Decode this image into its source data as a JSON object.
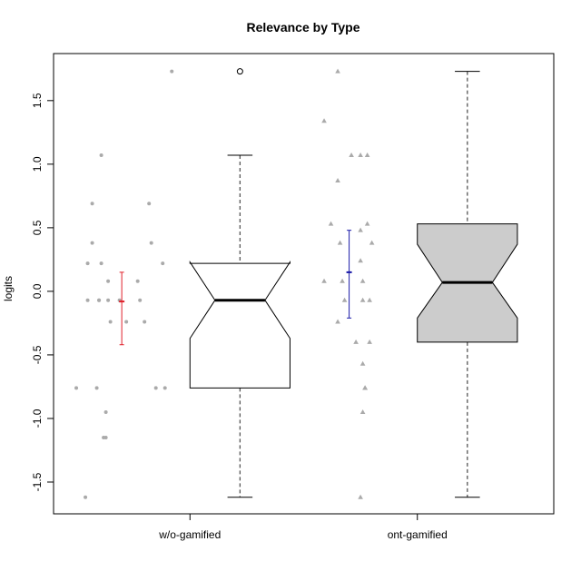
{
  "chart_data": {
    "type": "boxplot",
    "title": "Relevance by Type",
    "xlabel": "",
    "ylabel": "logits",
    "ylim": [
      -1.75,
      1.87
    ],
    "yticks": [
      -1.5,
      -1.0,
      -0.5,
      0.0,
      0.5,
      1.0,
      1.5
    ],
    "ytick_labels": [
      "-1.5",
      "-1.0",
      "-0.5",
      "0.0",
      "0.5",
      "1.0",
      "1.5"
    ],
    "categories": [
      "w/o-gamified",
      "ont-gamified"
    ],
    "grid": false,
    "boxes": [
      {
        "name": "w/o-gamified",
        "fill": "#ffffff",
        "whisker_low": -1.62,
        "q1": -0.76,
        "median": -0.07,
        "q3": 0.22,
        "whisker_high": 1.07,
        "notch_low": -0.37,
        "notch_high": 0.23,
        "outliers": [
          1.73
        ]
      },
      {
        "name": "ont-gamified",
        "fill": "#cccccc",
        "whisker_low": -1.62,
        "q1": -0.4,
        "median": 0.07,
        "q3": 0.53,
        "whisker_high": 1.73,
        "notch_low": -0.21,
        "notch_high": 0.37,
        "outliers": []
      }
    ],
    "mean_ci": [
      {
        "name": "w/o-gamified",
        "mean": -0.08,
        "low": -0.42,
        "high": 0.15,
        "color": "#e0202a"
      },
      {
        "name": "ont-gamified",
        "mean": 0.15,
        "low": -0.21,
        "high": 0.48,
        "color": "#1a1aa8"
      }
    ],
    "points": [
      {
        "name": "w/o-gamified",
        "marker": "circle",
        "color": "#aaaaaa",
        "x_offsets": [
          0.22,
          -0.09,
          0.12,
          -0.13,
          0.13,
          -0.13,
          -0.09,
          0.18,
          -0.15,
          -0.06,
          0.07,
          -0.15,
          -0.1,
          -0.06,
          -0.01,
          0.08,
          -0.1,
          -0.05,
          0.02,
          0.1,
          -0.2,
          0.15,
          0.19,
          -0.11,
          -0.07,
          -0.08,
          -0.07,
          -0.16
        ],
        "y": [
          1.73,
          1.07,
          0.69,
          0.69,
          0.38,
          0.38,
          0.22,
          0.22,
          0.22,
          0.08,
          0.08,
          -0.07,
          -0.07,
          -0.07,
          -0.07,
          -0.07,
          -0.07,
          -0.24,
          -0.24,
          -0.24,
          -0.76,
          -0.76,
          -0.76,
          -0.76,
          -0.95,
          -1.15,
          -1.15,
          -1.62
        ]
      },
      {
        "name": "ont-gamified",
        "marker": "triangle",
        "color": "#aaaaaa",
        "x_offsets": [
          -0.05,
          -0.11,
          0.01,
          0.05,
          0.08,
          -0.05,
          0.08,
          -0.08,
          0.05,
          0.1,
          -0.04,
          0.05,
          -0.11,
          -0.03,
          0.06,
          -0.02,
          0.06,
          0.09,
          -0.05,
          0.03,
          0.09,
          0.06,
          0.07,
          0.07,
          0.07,
          0.06,
          0.05
        ],
        "y": [
          1.73,
          1.34,
          1.07,
          1.07,
          1.07,
          0.87,
          0.53,
          0.53,
          0.48,
          0.38,
          0.38,
          0.24,
          0.08,
          0.08,
          0.08,
          -0.07,
          -0.07,
          -0.07,
          -0.24,
          -0.4,
          -0.4,
          -0.57,
          -0.76,
          -0.76,
          -0.76,
          -0.95,
          -1.62
        ]
      }
    ]
  }
}
